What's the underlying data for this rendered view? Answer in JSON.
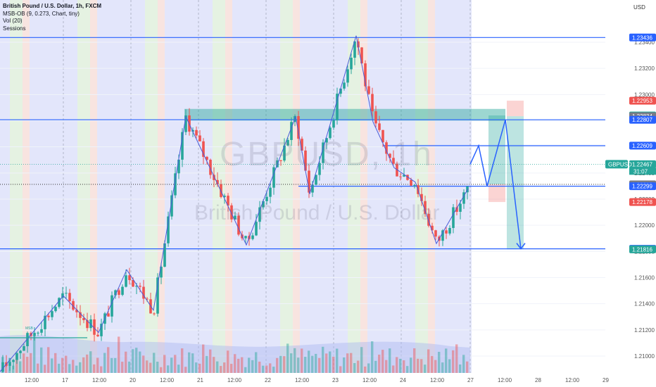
{
  "legend": {
    "title": "British Pound / U.S. Dollar, 1h, FXCM",
    "indicators": [
      "MSB-OB (9, 0.273, Chart, tiny)",
      "Vol (20)",
      "Sessions"
    ]
  },
  "watermark": {
    "symbol": "GBPUSD, 1h",
    "name": "British Pound / U.S. Dollar"
  },
  "currency": "USD",
  "ticker": {
    "symbol": "GBPUSD",
    "price": "1.22467",
    "countdown": "31:07"
  },
  "msb_label": "MSB",
  "colors": {
    "up": "#26a69a",
    "down": "#ef5350",
    "line": "#2962ff"
  },
  "chart_data": {
    "type": "candlestick",
    "symbol": "GBPUSD",
    "timeframe": "1h",
    "ylim": [
      1.2085,
      1.2365
    ],
    "y_ticks": [
      "1.23400",
      "1.23200",
      "1.23000",
      "1.22800",
      "1.22600",
      "1.22400",
      "1.22200",
      "1.22000",
      "1.21800",
      "1.21600",
      "1.21400",
      "1.21200",
      "1.21000"
    ],
    "x_ticks": [
      "12:00",
      "17",
      "12:00",
      "20",
      "12:00",
      "21",
      "12:00",
      "22",
      "12:00",
      "23",
      "12:00",
      "24",
      "12:00",
      "27",
      "12:00",
      "28",
      "12:00",
      "29"
    ],
    "price_labels": [
      {
        "text": "1.23436",
        "value": 1.23436,
        "color": "#2962ff"
      },
      {
        "text": "1.22953",
        "value": 1.22953,
        "color": "#ef5350"
      },
      {
        "text": "1.22840",
        "value": 1.2284,
        "color": "#26a69a"
      },
      {
        "text": "1.22834",
        "value": 1.22834,
        "color": "#787b86"
      },
      {
        "text": "1.22807",
        "value": 1.22807,
        "color": "#2962ff"
      },
      {
        "text": "1.22609",
        "value": 1.22609,
        "color": "#2962ff"
      },
      {
        "text": "1.22467",
        "value": 1.22467,
        "color": "#26a69a"
      },
      {
        "text": "1.22313",
        "value": 1.22313,
        "color": "#787b86"
      },
      {
        "text": "1.22299",
        "value": 1.22299,
        "color": "#2962ff"
      },
      {
        "text": "1.22178",
        "value": 1.22178,
        "color": "#ef5350"
      },
      {
        "text": "1.21820",
        "value": 1.2182,
        "color": "#2962ff"
      },
      {
        "text": "1.21816",
        "value": 1.21816,
        "color": "#26a69a"
      }
    ],
    "horizontal_levels": [
      1.23436,
      1.22807,
      1.22609,
      1.22299,
      1.2182
    ],
    "dotted_level": 1.22313,
    "projection": [
      1.22467,
      1.22609,
      1.22299,
      1.22807,
      1.2182
    ],
    "zigzag": [
      1.2088,
      1.2146,
      1.2118,
      1.2166,
      1.2135,
      1.2283,
      1.2185,
      1.2283,
      1.2224,
      1.2345,
      1.2279,
      1.2244,
      1.2233,
      1.2186,
      1.2228
    ]
  }
}
